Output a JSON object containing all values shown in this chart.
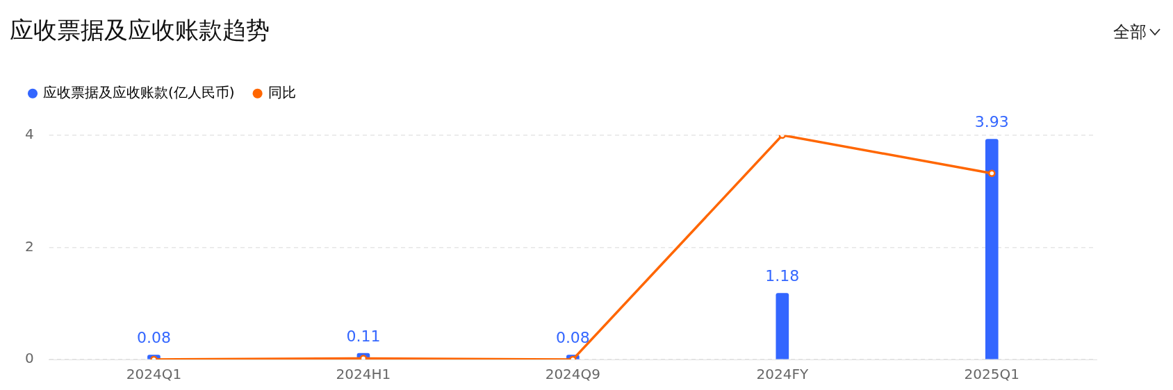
{
  "chart_data": {
    "type": "bar",
    "title": "应收票据及应收账款趋势",
    "annotations": [
      "全部"
    ],
    "categories": [
      "2024Q1",
      "2024H1",
      "2024Q9",
      "2024FY",
      "2025Q1"
    ],
    "series": [
      {
        "name": "应收票据及应收账款(亿人民币)",
        "color": "#3366ff",
        "values": [
          0.08,
          0.11,
          0.08,
          1.18,
          3.93
        ],
        "value_labels": [
          "0.08",
          "0.11",
          "0.08",
          "1.18",
          "3.93"
        ]
      },
      {
        "name": "同比",
        "type": "line",
        "color": "#ff6600",
        "values": [
          0,
          0.02,
          0,
          4.0,
          3.32
        ]
      }
    ],
    "ylim": [
      0,
      4
    ],
    "yticks": [
      0,
      2,
      4
    ],
    "grid": "y",
    "legend": "top left",
    "marker": "circle",
    "line_style": "solid"
  }
}
